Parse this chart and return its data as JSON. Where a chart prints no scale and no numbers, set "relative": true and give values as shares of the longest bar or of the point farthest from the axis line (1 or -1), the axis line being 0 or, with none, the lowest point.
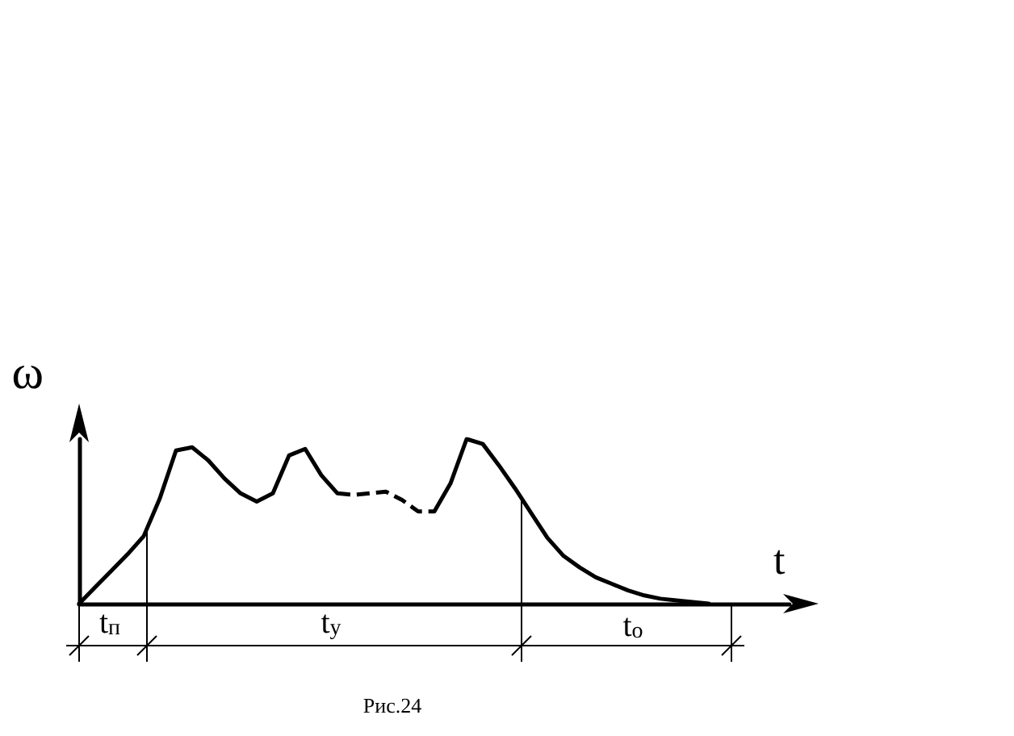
{
  "chart_data": {
    "type": "line",
    "relative": true,
    "xlabel": "t",
    "ylabel": "ω",
    "marker": "none",
    "grid": false,
    "categories": [
      null,
      null,
      null,
      null,
      null,
      null,
      null,
      null,
      null,
      null,
      null,
      null,
      null,
      null,
      null,
      null,
      null,
      null,
      null,
      null,
      null,
      null,
      null,
      null,
      null,
      null,
      null,
      null,
      null,
      null,
      null,
      null,
      null,
      null,
      null,
      null,
      null,
      null,
      null,
      null,
      null,
      null,
      null,
      null,
      null
    ],
    "series": [
      {
        "color": "#000000",
        "line_style": "solid",
        "values": [
          0,
          0.1,
          0.2,
          0.3,
          0.41,
          0.64,
          0.93,
          0.95,
          0.87,
          0.76,
          0.67,
          0.62,
          0.67,
          0.9,
          0.94,
          0.78,
          0.67,
          0.66,
          0.67,
          0.68,
          0.63,
          0.56,
          0.56,
          0.73,
          1,
          0.97,
          0.84,
          0.7,
          0.55,
          0.4,
          0.29,
          0.22,
          0.16,
          0.12,
          0.08,
          0.05,
          0.03,
          0.02,
          0.01,
          0,
          null,
          null,
          null,
          null,
          null
        ]
      }
    ],
    "annotations": [
      "t$_{п}$",
      "t$_{у}$",
      "t$_{о}$",
      "Рис.24"
    ]
  }
}
